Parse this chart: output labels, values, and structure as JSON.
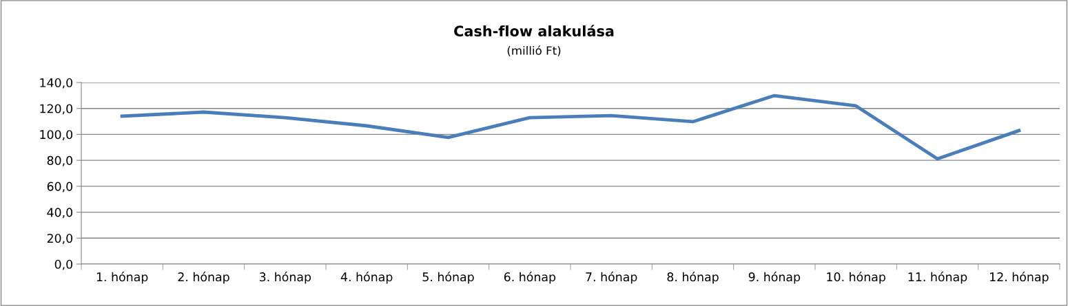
{
  "chart_data": {
    "type": "line",
    "title": "Cash-flow alakulása",
    "subtitle": "(millió Ft)",
    "categories": [
      "1. hónap",
      "2. hónap",
      "3. hónap",
      "4. hónap",
      "5. hónap",
      "6. hónap",
      "7. hónap",
      "8. hónap",
      "9. hónap",
      "10. hónap",
      "11. hónap",
      "12. hónap"
    ],
    "series": [
      {
        "color": "#4a7ebb",
        "values": [
          114.0,
          117.2,
          112.9,
          106.6,
          97.6,
          112.9,
          114.5,
          109.8,
          129.9,
          122.0,
          81.1,
          102.9
        ]
      }
    ],
    "ylim": [
      0,
      140
    ],
    "yticks": [
      {
        "value": 0,
        "label": "0,0"
      },
      {
        "value": 20,
        "label": "20,0"
      },
      {
        "value": 40,
        "label": "40,0"
      },
      {
        "value": 60,
        "label": "60,0"
      },
      {
        "value": 80,
        "label": "80,0"
      },
      {
        "value": 100,
        "label": "100,0"
      },
      {
        "value": 120,
        "label": "120,0"
      },
      {
        "value": 140,
        "label": "140,0"
      }
    ],
    "grid": "y",
    "legend": false,
    "marker": "none",
    "line_style": "solid"
  }
}
